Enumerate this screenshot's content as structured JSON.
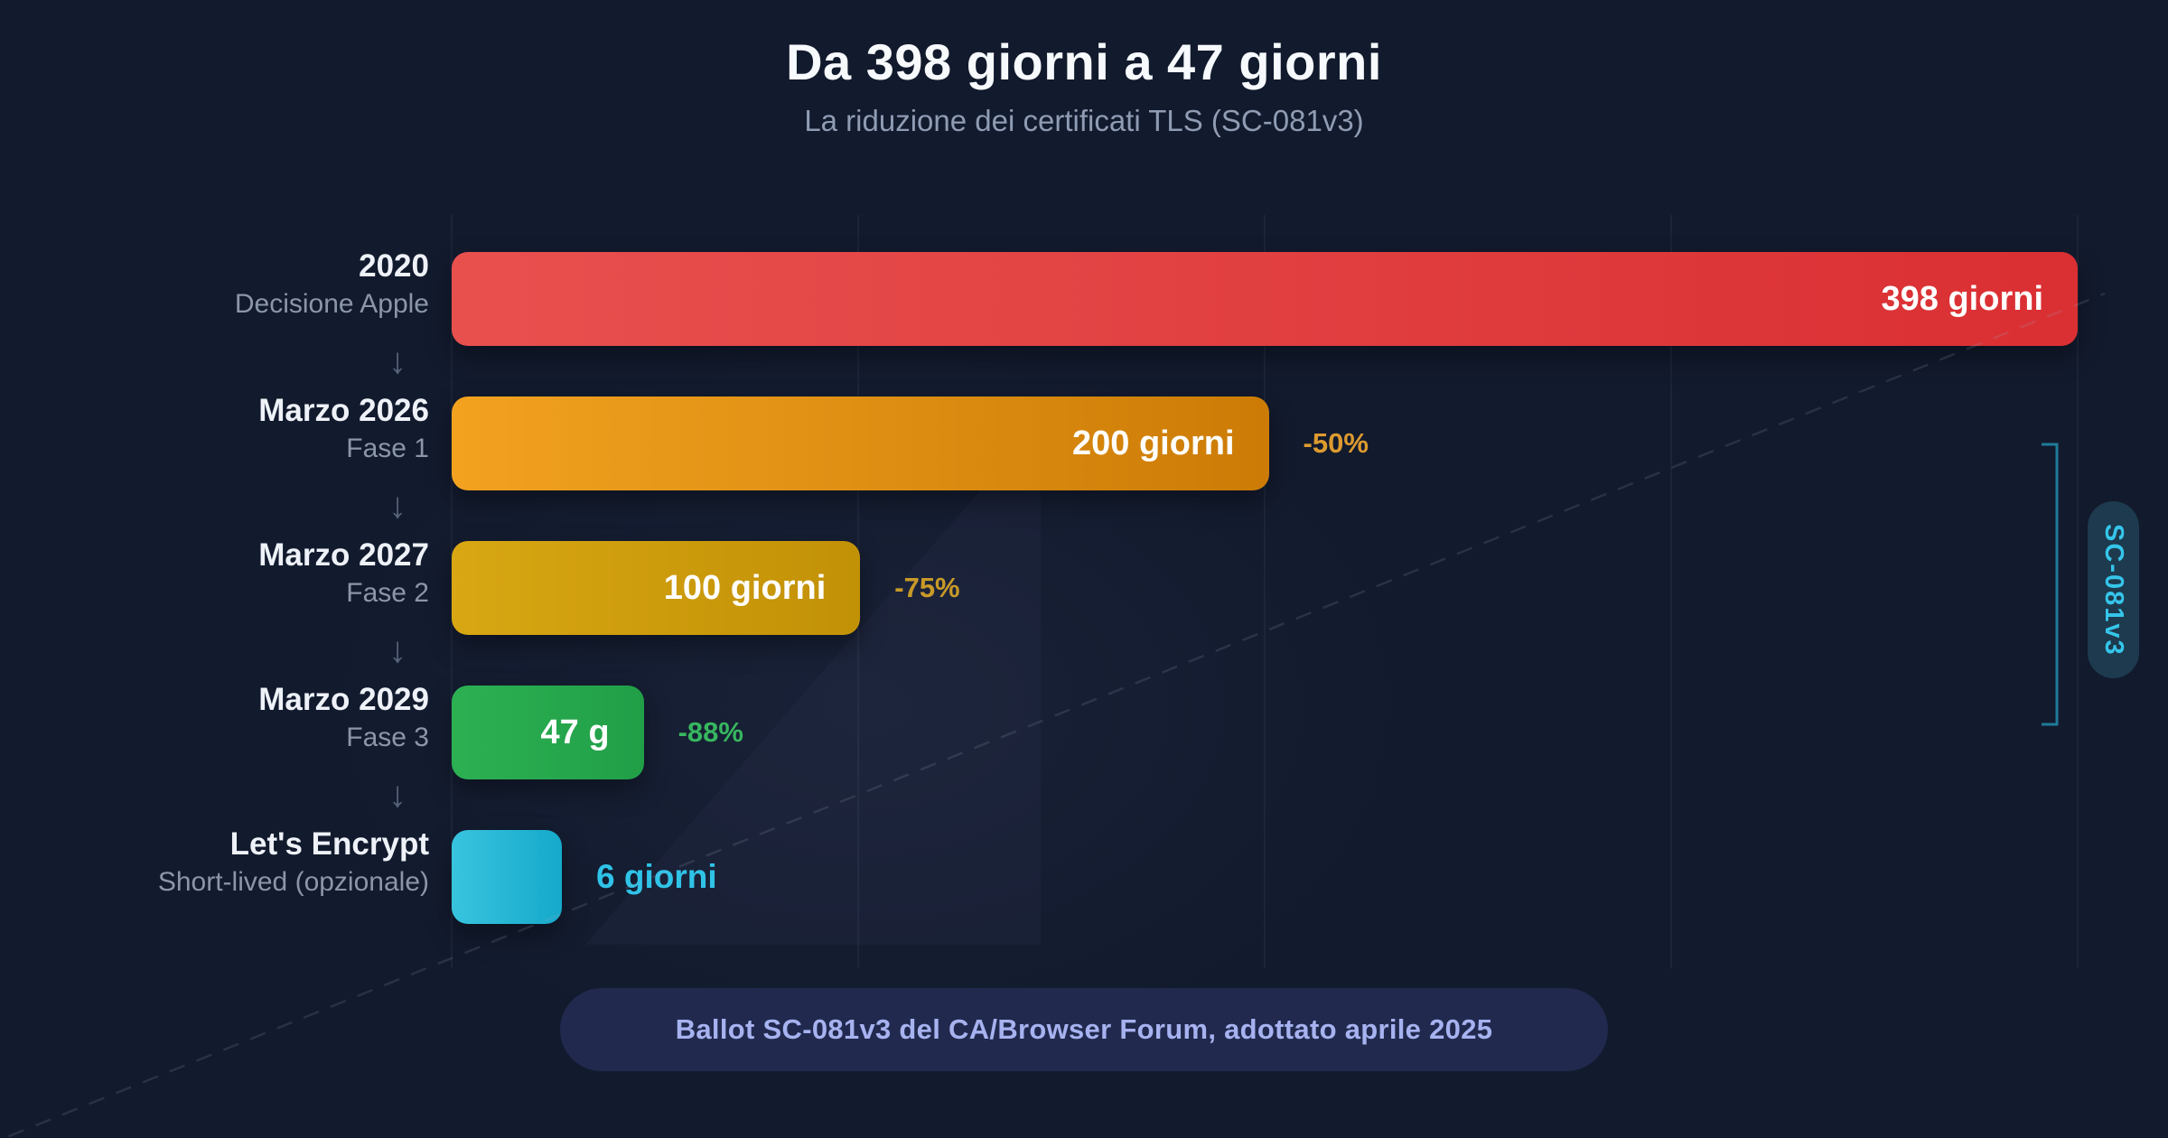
{
  "title": "Da 398 giorni a 47 giorni",
  "subtitle": "La riduzione dei certificati TLS (SC-081v3)",
  "footer_badge": "Ballot SC-081v3 del CA/Browser Forum, adottato aprile 2025",
  "arrow_glyph": "↓",
  "colors": {
    "background": "#121a2d",
    "grid": "#8ca0c0",
    "ghost_line": "#9fb0ca",
    "bracket": "#20809f",
    "pill_bg": "#1d3a4e",
    "pill_text": "#35c5ea",
    "badge_bg": "#212a4e",
    "badge_text": "#a7b2f0",
    "period_text": "#eef2f8",
    "phase_text": "#8b96a9"
  },
  "chart_data": {
    "type": "bar",
    "orientation": "horizontal",
    "unit": "giorni",
    "xlim": [
      0,
      398
    ],
    "grid_divisions": 4,
    "rows": [
      {
        "period": "2020",
        "phase": "Decisione Apple",
        "days": 398,
        "value_label": "398 giorni",
        "value_label_position": "inside",
        "delta_label": null,
        "delta_color": null,
        "bar_colors": [
          "#e8504e",
          "#da2f33"
        ],
        "value_outside_color": null
      },
      {
        "period": "Marzo 2026",
        "phase": "Fase 1",
        "days": 200,
        "value_label": "200 giorni",
        "value_label_position": "inside",
        "delta_label": "-50%",
        "delta_color": "#dd9b2f",
        "bar_colors": [
          "#f2a21f",
          "#cc7c06"
        ],
        "value_outside_color": null
      },
      {
        "period": "Marzo 2027",
        "phase": "Fase 2",
        "days": 100,
        "value_label": "100 giorni",
        "value_label_position": "inside",
        "delta_label": "-75%",
        "delta_color": "#c89a28",
        "bar_colors": [
          "#d8a713",
          "#c29106"
        ],
        "value_outside_color": null
      },
      {
        "period": "Marzo 2029",
        "phase": "Fase 3",
        "days": 47,
        "value_label": "47 g",
        "value_label_position": "inside",
        "delta_label": "-88%",
        "delta_color": "#37b65f",
        "bar_colors": [
          "#2cb052",
          "#219f48"
        ],
        "value_outside_color": null
      },
      {
        "period": "Let's Encrypt",
        "phase": "Short-lived (opzionale)",
        "days": 6,
        "value_label": "6 giorni",
        "value_label_position": "outside",
        "delta_label": null,
        "delta_color": null,
        "bar_colors": [
          "#38c4de",
          "#16a9cb"
        ],
        "value_outside_color": "#2fc3e8"
      }
    ],
    "bracket": {
      "label": "SC-081v3",
      "from_phase": "Fase 1",
      "to_phase": "Fase 3"
    }
  }
}
